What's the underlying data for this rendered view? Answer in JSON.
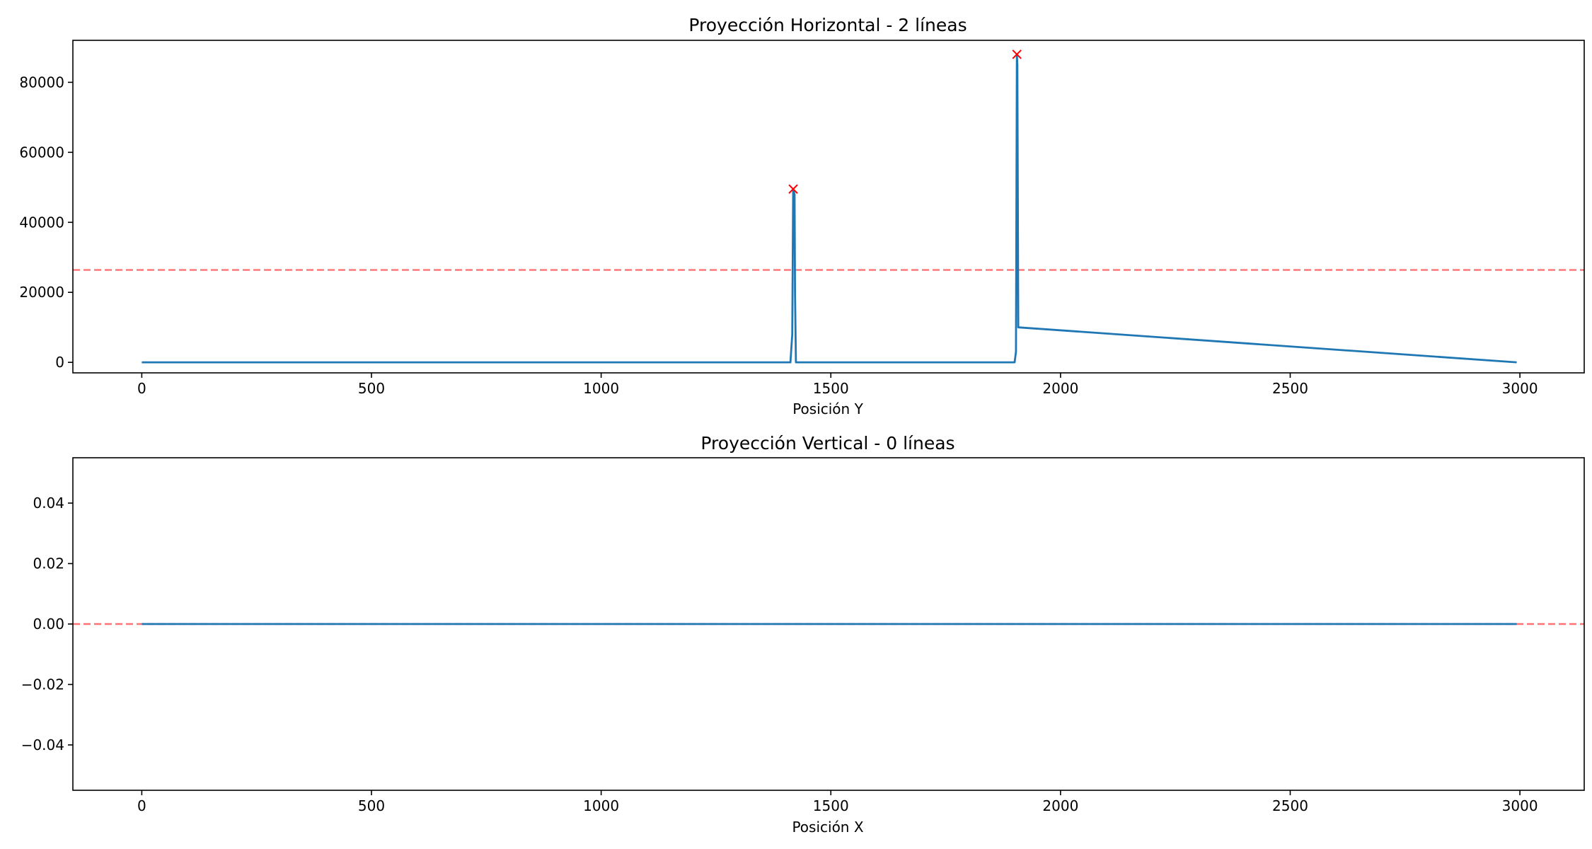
{
  "chart_data": [
    {
      "type": "line",
      "title": "Proyección Horizontal - 2 líneas",
      "xlabel": "Posición Y",
      "ylabel": "",
      "xlim": [
        -150,
        3140
      ],
      "ylim": [
        -3000,
        92000
      ],
      "xticks": [
        0,
        500,
        1000,
        1500,
        2000,
        2500,
        3000
      ],
      "yticks": [
        0,
        20000,
        40000,
        60000,
        80000
      ],
      "grid": false,
      "colors": {
        "line": "#1f77b4",
        "peak_marker": "#ff0000",
        "threshold": "#ff5a5a"
      },
      "series": [
        {
          "x": [
            0,
            1412,
            1416,
            1418,
            1419,
            1421,
            1422,
            1424,
            1900,
            1903,
            1905,
            1906,
            1908,
            2993
          ],
          "y": [
            0,
            0,
            8000,
            49500,
            49000,
            48000,
            20000,
            0,
            0,
            3000,
            88000,
            85000,
            10000,
            0
          ]
        }
      ],
      "peaks": [
        {
          "x": 1418,
          "y": 49500
        },
        {
          "x": 1905,
          "y": 88000
        }
      ],
      "threshold": 26400
    },
    {
      "type": "line",
      "title": "Proyección Vertical - 0 líneas",
      "xlabel": "Posición X",
      "ylabel": "",
      "xlim": [
        -150,
        3140
      ],
      "ylim": [
        -0.055,
        0.055
      ],
      "xticks": [
        0,
        500,
        1000,
        1500,
        2000,
        2500,
        3000
      ],
      "yticks": [
        -0.04,
        -0.02,
        0,
        0.02,
        0.04
      ],
      "ytick_labels": [
        "−0.04",
        "−0.02",
        "0.00",
        "0.02",
        "0.04"
      ],
      "grid": false,
      "colors": {
        "line": "#1f77b4",
        "peak_marker": "#ff0000",
        "threshold": "#ff5a5a"
      },
      "series": [
        {
          "x": [
            0,
            2993
          ],
          "y": [
            0,
            0
          ]
        }
      ],
      "peaks": [],
      "threshold": 0
    }
  ]
}
